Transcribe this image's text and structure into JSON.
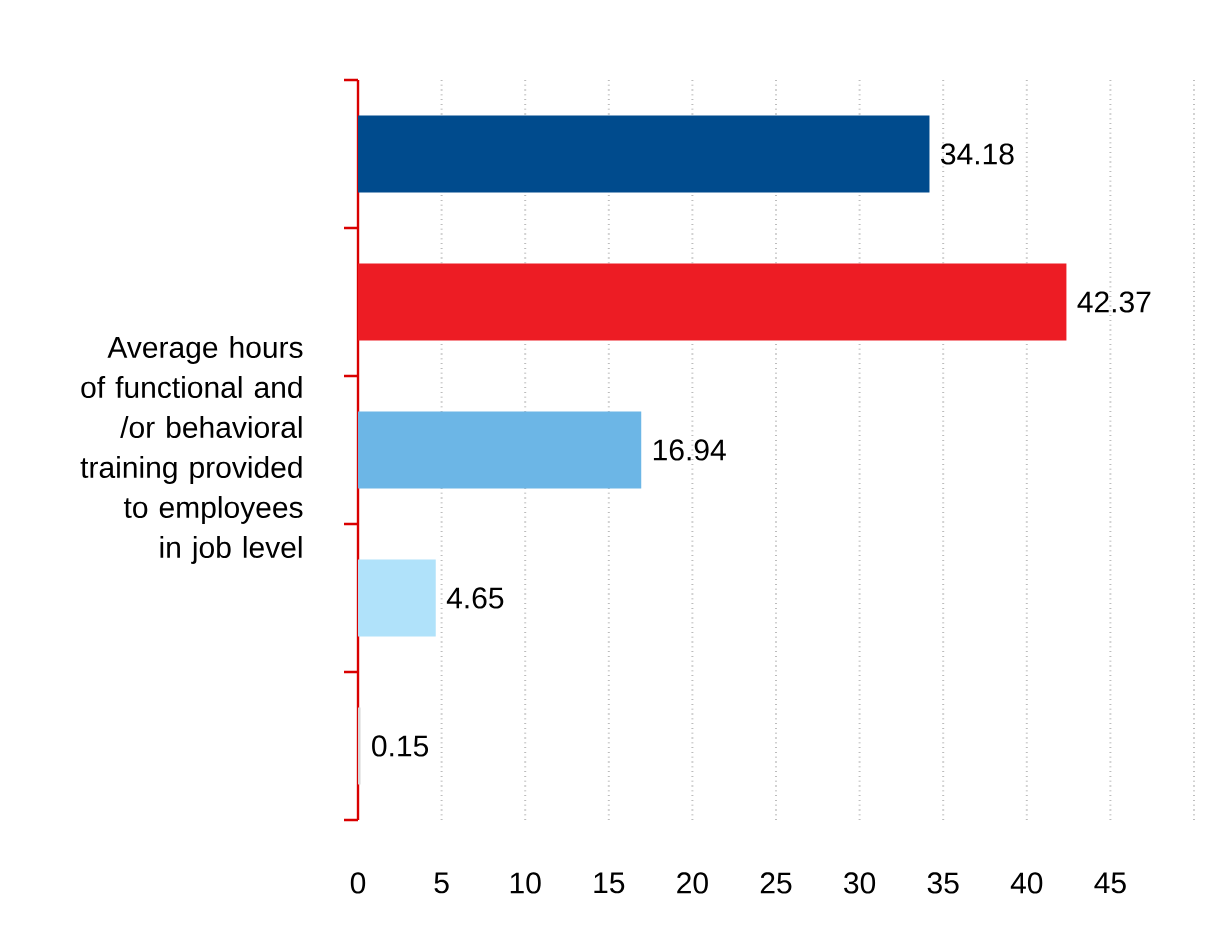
{
  "chart_data": {
    "type": "bar",
    "orientation": "horizontal",
    "ylabel": "Average hours of functional and /or behavioral training provided to employees in job level",
    "categories": [
      null,
      null,
      null,
      null,
      null
    ],
    "values": [
      34.18,
      42.37,
      16.94,
      4.65,
      0.15
    ],
    "colors": [
      "#004b8d",
      "#ed1c24",
      "#6cb6e6",
      "#b0e2fa",
      "#d6d6d6"
    ],
    "xlim": [
      0,
      50
    ],
    "xticks": [
      0,
      5,
      10,
      15,
      20,
      25,
      30,
      35,
      40,
      45,
      {
        "value": 50,
        "label": null
      }
    ],
    "grid": "x",
    "data_labels": true
  }
}
